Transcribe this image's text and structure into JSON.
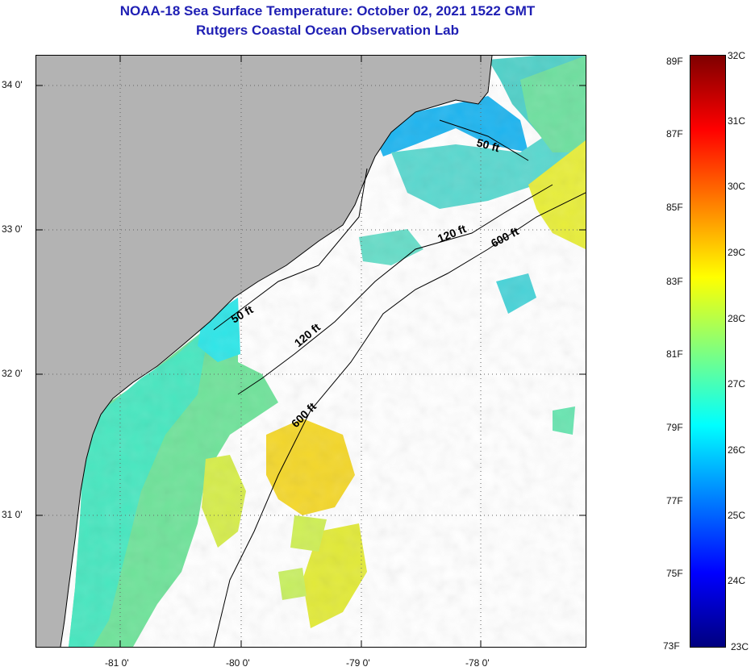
{
  "title": {
    "line1": "NOAA-18 Sea Surface Temperature:  October 02, 2021 1522 GMT",
    "line2": "Rutgers Coastal Ocean Observation Lab"
  },
  "map": {
    "lat_ticks": [
      {
        "label": "34 0'"
      },
      {
        "label": "33 0'"
      },
      {
        "label": "32 0'"
      },
      {
        "label": "31 0'"
      }
    ],
    "lon_ticks": [
      {
        "label": "-81 0'"
      },
      {
        "label": "-80 0'"
      },
      {
        "label": "-79 0'"
      },
      {
        "label": "-78 0'"
      }
    ],
    "contour_labels": [
      "50 ft",
      "120 ft",
      "600 ft",
      "50 ft",
      "120 ft",
      "600 ft"
    ],
    "colors": {
      "land": "#b3b3b3",
      "no_data": "#ffffff",
      "contour": "#000000"
    }
  },
  "colorbar": {
    "fahrenheit": [
      "89F",
      "87F",
      "85F",
      "83F",
      "81F",
      "79F",
      "77F",
      "75F",
      "73F"
    ],
    "celsius": [
      "32C",
      "31C",
      "30C",
      "29C",
      "28C",
      "27C",
      "26C",
      "25C",
      "24C",
      "23C"
    ],
    "range_c": [
      23,
      32
    ],
    "stops": [
      "#00007f",
      "#0000ff",
      "#007fff",
      "#00ffff",
      "#7fff7f",
      "#ffff00",
      "#ff7f00",
      "#ff0000",
      "#7f0000"
    ]
  }
}
